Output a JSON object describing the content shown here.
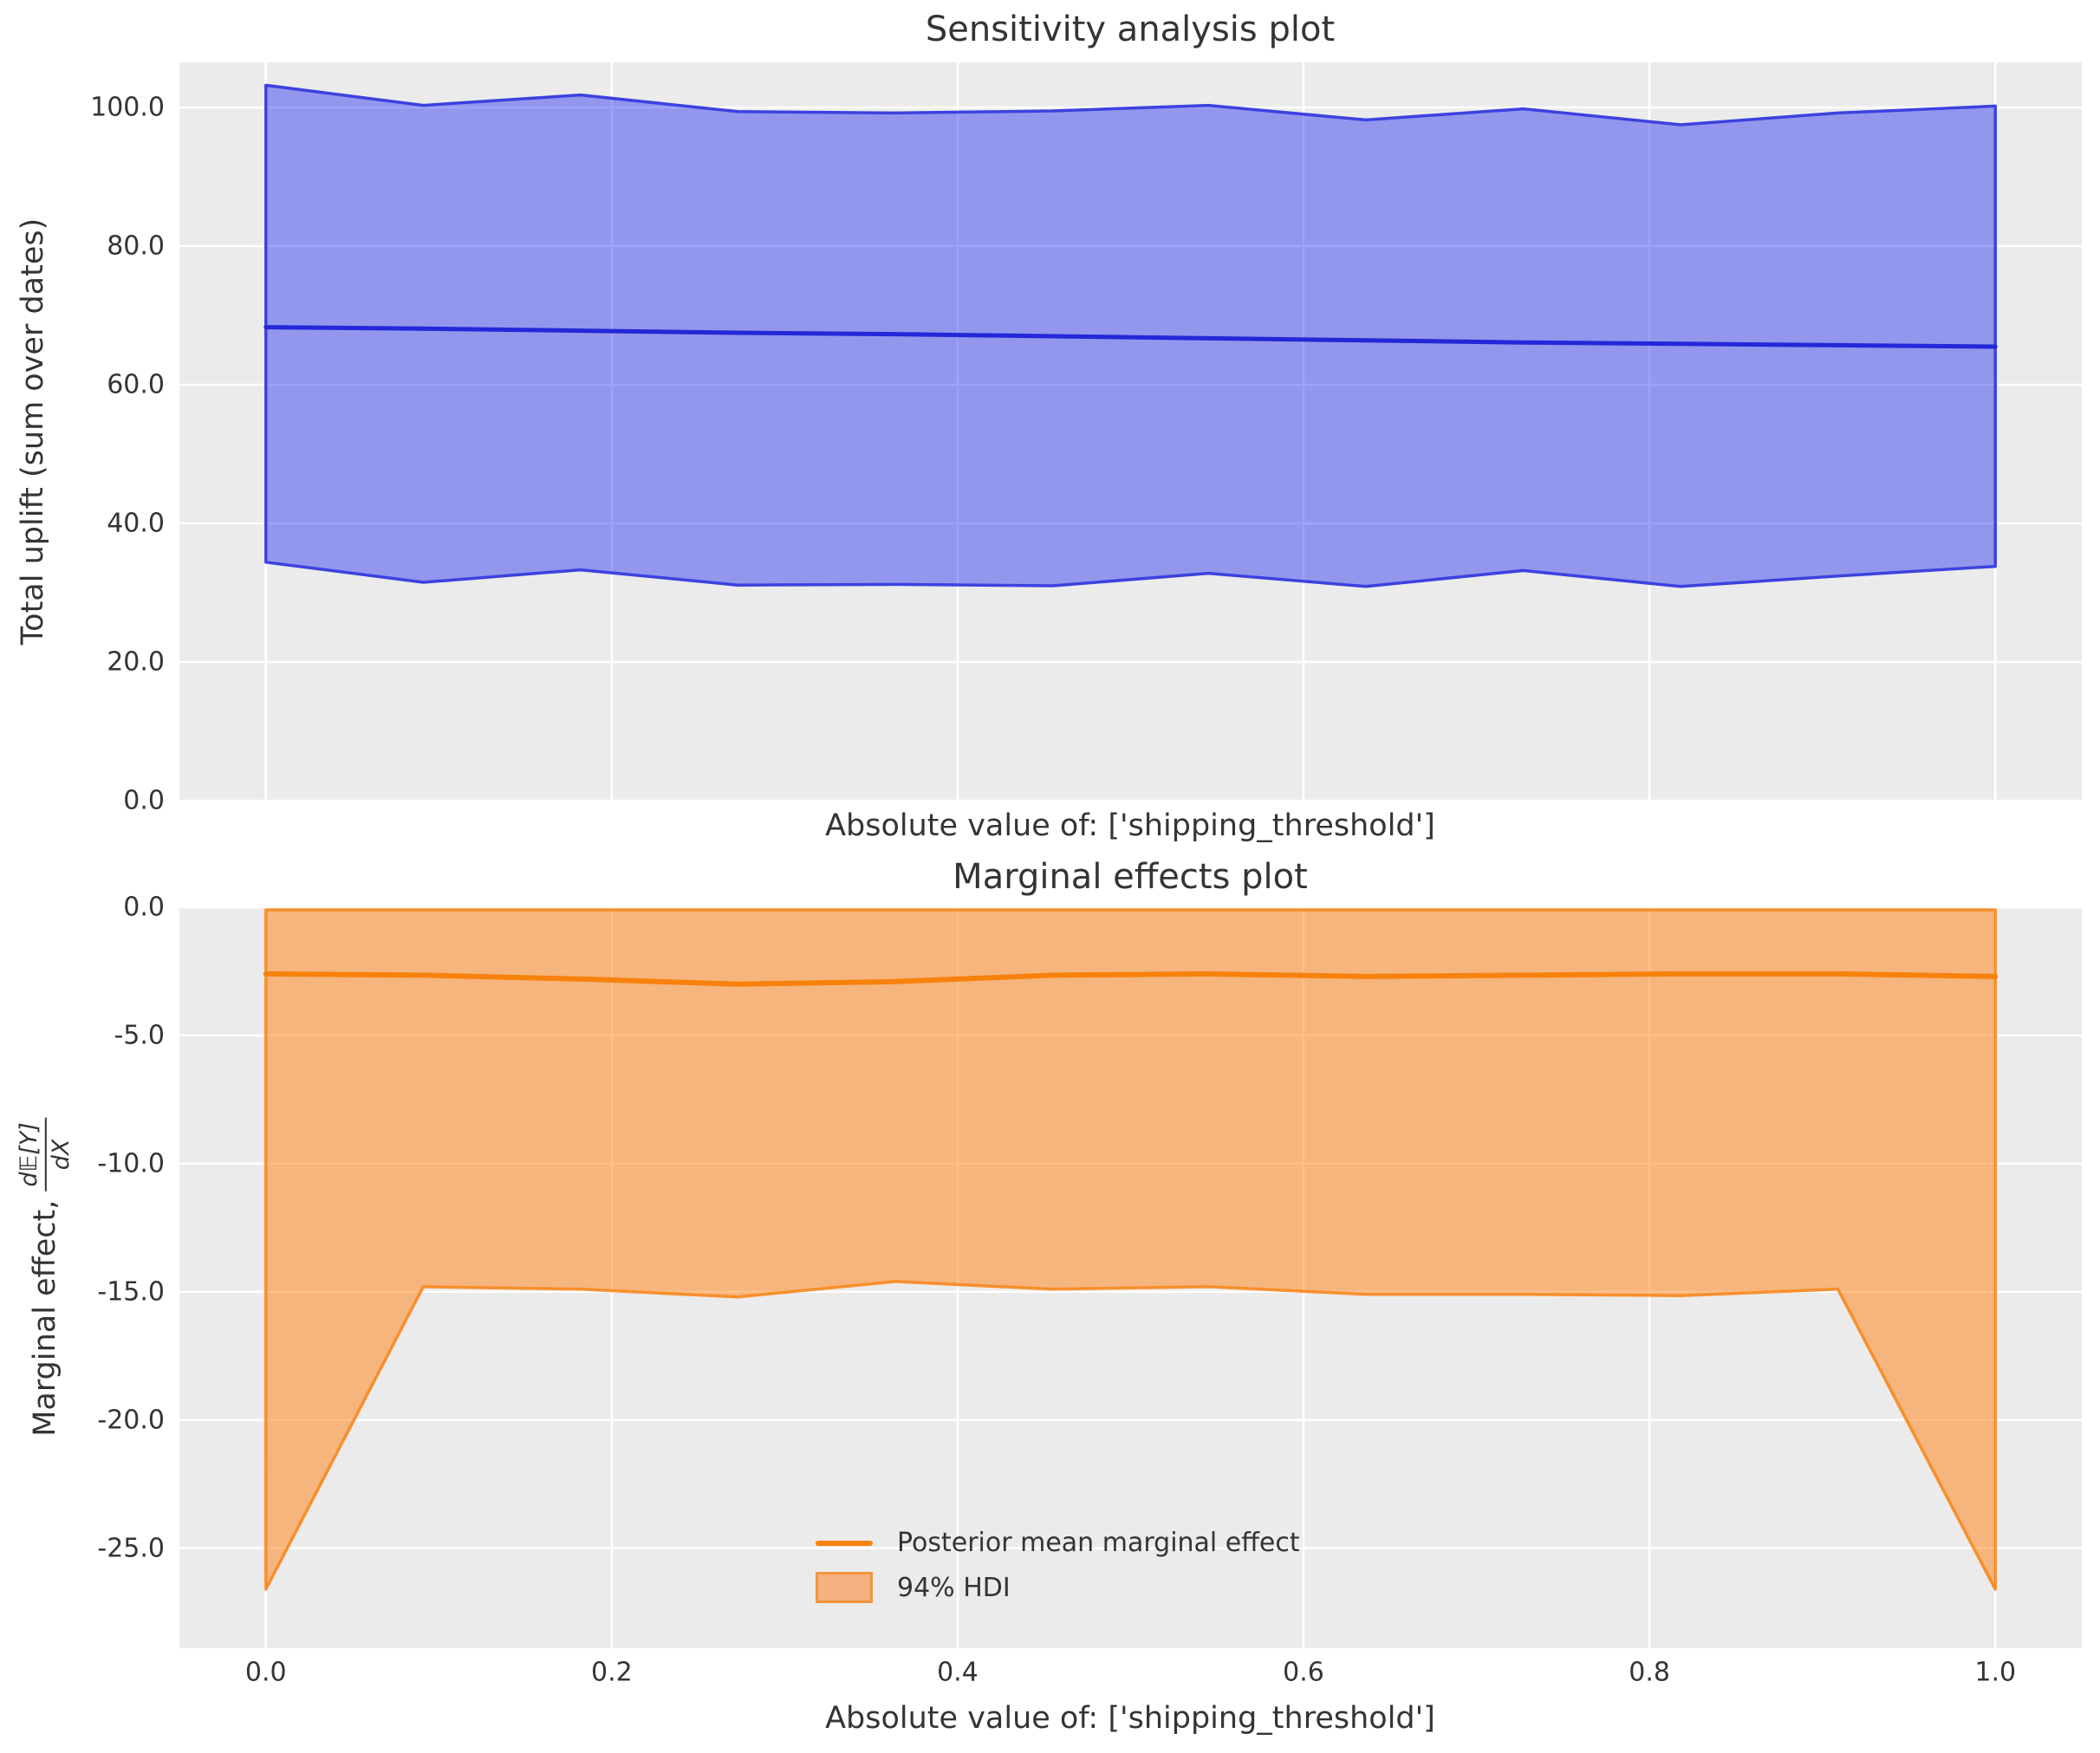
{
  "colors": {
    "figure_bg": "#ffffff",
    "axes_bg": "#ebebeb",
    "grid": "#ffffff",
    "text": "#343434",
    "blue_fill": "rgba(25,35,240,0.42)",
    "blue_edge": "#3c42df",
    "blue_mean": "#2428d8",
    "orange_fill": "rgba(255,127,14,0.5)",
    "orange_edge": "rgba(248,135,30,0.9)",
    "orange_mean": "#f8810d",
    "legend_patch_fill": "#f3b27f",
    "legend_patch_edge": "#f0953d"
  },
  "top_plot": {
    "title": "Sensitivity analysis plot",
    "ylabel": "Total uplift (sum over dates)",
    "xlabel": "Absolute value of: ['shipping_threshold']"
  },
  "bottom_plot": {
    "title": "Marginal effects plot",
    "ylabel_prefix": "Marginal effect,",
    "ylabel_frac_num": "d𝔼[Y]",
    "ylabel_frac_den": "dX",
    "xlabel": "Absolute value of: ['shipping_threshold']",
    "legend": [
      {
        "type": "line",
        "label": "Posterior mean marginal effect"
      },
      {
        "type": "patch",
        "label": "94% HDI"
      }
    ]
  },
  "chart_data": [
    {
      "type": "area",
      "panel": "top",
      "title": "Sensitivity analysis plot",
      "xlabel": "Absolute value of: ['shipping_threshold']",
      "ylabel": "Total uplift (sum over dates)",
      "x": [
        0.0,
        0.091,
        0.182,
        0.273,
        0.364,
        0.455,
        0.545,
        0.636,
        0.727,
        0.818,
        0.909,
        1.0
      ],
      "series": [
        {
          "name": "Posterior mean total uplift",
          "role": "mean",
          "values": [
            68.3,
            68.1,
            67.8,
            67.5,
            67.3,
            67.0,
            66.7,
            66.4,
            66.1,
            65.9,
            65.7,
            65.5
          ]
        },
        {
          "name": "HDI upper bound",
          "role": "band_upper",
          "values": [
            103.2,
            100.3,
            101.8,
            99.4,
            99.2,
            99.5,
            100.3,
            98.2,
            99.8,
            97.5,
            99.2,
            100.2
          ]
        },
        {
          "name": "HDI lower bound",
          "role": "band_lower",
          "values": [
            34.4,
            31.5,
            33.3,
            31.1,
            31.2,
            31.0,
            32.8,
            30.9,
            33.2,
            30.9,
            32.4,
            33.8
          ]
        }
      ],
      "xlim": [
        -0.05,
        1.05
      ],
      "ylim": [
        0,
        106.5
      ],
      "xticks": [
        0.0,
        0.2,
        0.4,
        0.6,
        0.8,
        1.0
      ],
      "yticks": [
        0,
        20,
        40,
        60,
        80,
        100
      ],
      "ytick_labels": [
        "0.0",
        "20.0",
        "40.0",
        "60.0",
        "80.0",
        "100.0"
      ],
      "grid": true,
      "legend_position": "none"
    },
    {
      "type": "area",
      "panel": "bottom",
      "title": "Marginal effects plot",
      "xlabel": "Absolute value of: ['shipping_threshold']",
      "ylabel": "Marginal effect, d𝔼[Y]/dX",
      "x": [
        0.0,
        0.091,
        0.182,
        0.273,
        0.364,
        0.455,
        0.545,
        0.636,
        0.727,
        0.818,
        0.909,
        1.0
      ],
      "series": [
        {
          "name": "Posterior mean marginal effect",
          "role": "mean",
          "values": [
            -2.6,
            -2.65,
            -2.8,
            -3.0,
            -2.9,
            -2.65,
            -2.6,
            -2.7,
            -2.65,
            -2.6,
            -2.6,
            -2.7
          ]
        },
        {
          "name": "94% HDI upper bound",
          "role": "band_upper",
          "values": [
            -0.1,
            -0.1,
            -0.1,
            -0.1,
            -0.1,
            -0.1,
            -0.1,
            -0.1,
            -0.1,
            -0.1,
            -0.1,
            -0.1
          ]
        },
        {
          "name": "94% HDI lower bound",
          "role": "band_lower",
          "values": [
            -26.6,
            -14.8,
            -14.9,
            -15.2,
            -14.6,
            -14.9,
            -14.8,
            -15.1,
            -15.1,
            -15.15,
            -14.9,
            -26.6
          ]
        }
      ],
      "xlim": [
        -0.05,
        1.05
      ],
      "ylim": [
        -28.9,
        0
      ],
      "xticks": [
        0.0,
        0.2,
        0.4,
        0.6,
        0.8,
        1.0
      ],
      "xtick_labels": [
        "0.0",
        "0.2",
        "0.4",
        "0.6",
        "0.8",
        "1.0"
      ],
      "yticks": [
        0,
        -5,
        -10,
        -15,
        -20,
        -25
      ],
      "ytick_labels": [
        "0.0",
        "-5.0",
        "-10.0",
        "-15.0",
        "-20.0",
        "-25.0"
      ],
      "grid": true,
      "legend_entries": [
        "Posterior mean marginal effect",
        "94% HDI"
      ],
      "legend_position": "lower center"
    }
  ]
}
